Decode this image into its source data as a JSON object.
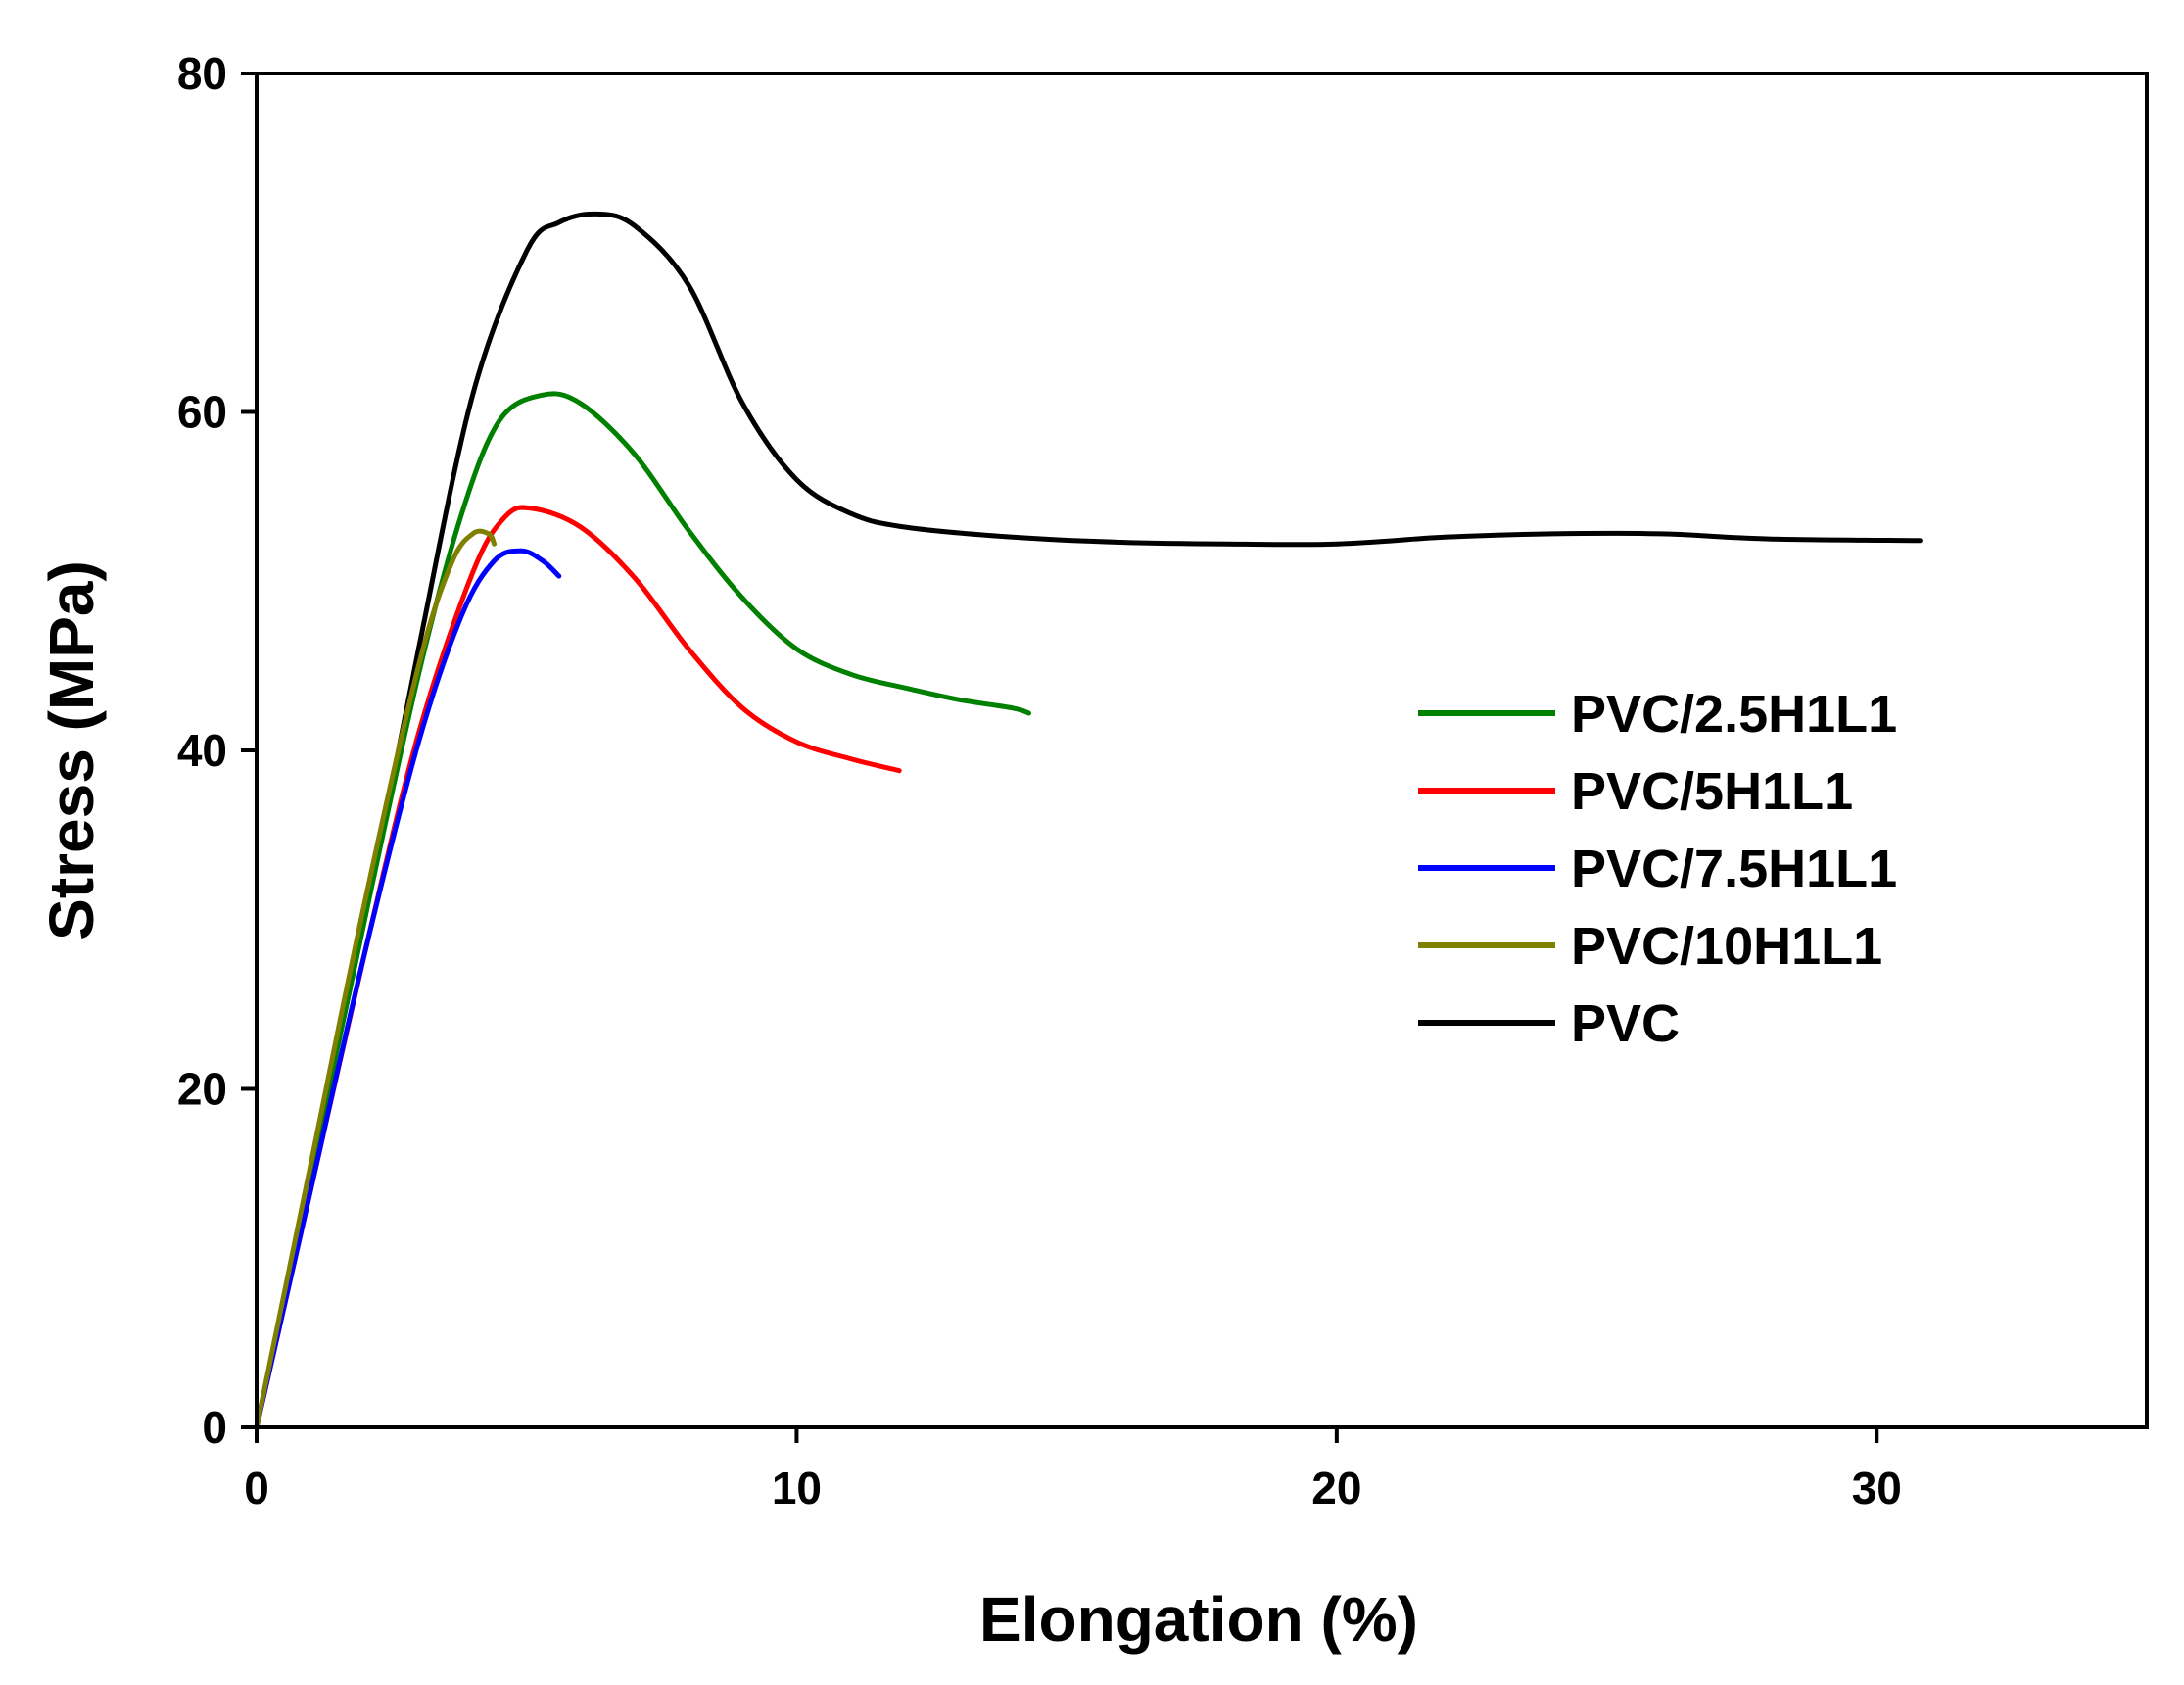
{
  "chart_data": {
    "type": "line",
    "title": "",
    "xlabel": "Elongation (%)",
    "ylabel": "Stress (MPa)",
    "xlim": [
      0,
      35
    ],
    "ylim": [
      0,
      80
    ],
    "xticks": [
      0,
      10,
      20,
      30
    ],
    "yticks": [
      0,
      20,
      40,
      60,
      80
    ],
    "grid": false,
    "legend_position": "right-middle",
    "series": [
      {
        "name": "PVC/2.5H1L1",
        "color": "#008000",
        "points": [
          [
            0,
            0
          ],
          [
            1,
            15
          ],
          [
            2,
            30
          ],
          [
            3,
            44.5
          ],
          [
            3.8,
            54
          ],
          [
            4.5,
            59.5
          ],
          [
            5.3,
            61
          ],
          [
            6,
            60.5
          ],
          [
            7,
            57.5
          ],
          [
            8,
            53
          ],
          [
            9,
            49
          ],
          [
            10,
            46
          ],
          [
            11,
            44.5
          ],
          [
            12,
            43.7
          ],
          [
            13,
            43
          ],
          [
            14,
            42.5
          ],
          [
            14.3,
            42.2
          ]
        ]
      },
      {
        "name": "PVC/5H1L1",
        "color": "#ff0000",
        "points": [
          [
            0,
            0
          ],
          [
            1,
            14
          ],
          [
            2,
            28
          ],
          [
            3,
            41
          ],
          [
            4,
            50.5
          ],
          [
            4.6,
            53.8
          ],
          [
            5.1,
            54.3
          ],
          [
            6,
            53.2
          ],
          [
            7,
            50.2
          ],
          [
            8,
            46
          ],
          [
            9,
            42.5
          ],
          [
            10,
            40.5
          ],
          [
            11,
            39.5
          ],
          [
            11.9,
            38.8
          ]
        ]
      },
      {
        "name": "PVC/7.5H1L1",
        "color": "#0000ff",
        "points": [
          [
            0,
            0
          ],
          [
            1,
            14
          ],
          [
            2,
            28
          ],
          [
            3,
            40.5
          ],
          [
            3.8,
            48
          ],
          [
            4.4,
            51.2
          ],
          [
            4.9,
            51.8
          ],
          [
            5.3,
            51.2
          ],
          [
            5.6,
            50.3
          ]
        ]
      },
      {
        "name": "PVC/10H1L1",
        "color": "#808000",
        "points": [
          [
            0,
            0
          ],
          [
            1,
            15.5
          ],
          [
            2,
            31
          ],
          [
            3,
            45
          ],
          [
            3.6,
            51
          ],
          [
            4,
            52.8
          ],
          [
            4.3,
            52.8
          ],
          [
            4.4,
            52.2
          ]
        ]
      },
      {
        "name": "PVC",
        "color": "#000000",
        "points": [
          [
            0,
            0
          ],
          [
            1,
            15
          ],
          [
            2,
            30
          ],
          [
            3,
            46
          ],
          [
            4,
            61
          ],
          [
            5,
            69.5
          ],
          [
            5.6,
            71.2
          ],
          [
            6.3,
            71.7
          ],
          [
            7,
            71
          ],
          [
            8,
            67.5
          ],
          [
            9,
            60.5
          ],
          [
            10,
            56
          ],
          [
            11,
            54
          ],
          [
            12,
            53.2
          ],
          [
            14,
            52.6
          ],
          [
            16,
            52.3
          ],
          [
            18,
            52.2
          ],
          [
            20,
            52.2
          ],
          [
            22,
            52.6
          ],
          [
            24,
            52.8
          ],
          [
            26,
            52.8
          ],
          [
            28,
            52.5
          ],
          [
            30.8,
            52.4
          ]
        ]
      }
    ]
  }
}
